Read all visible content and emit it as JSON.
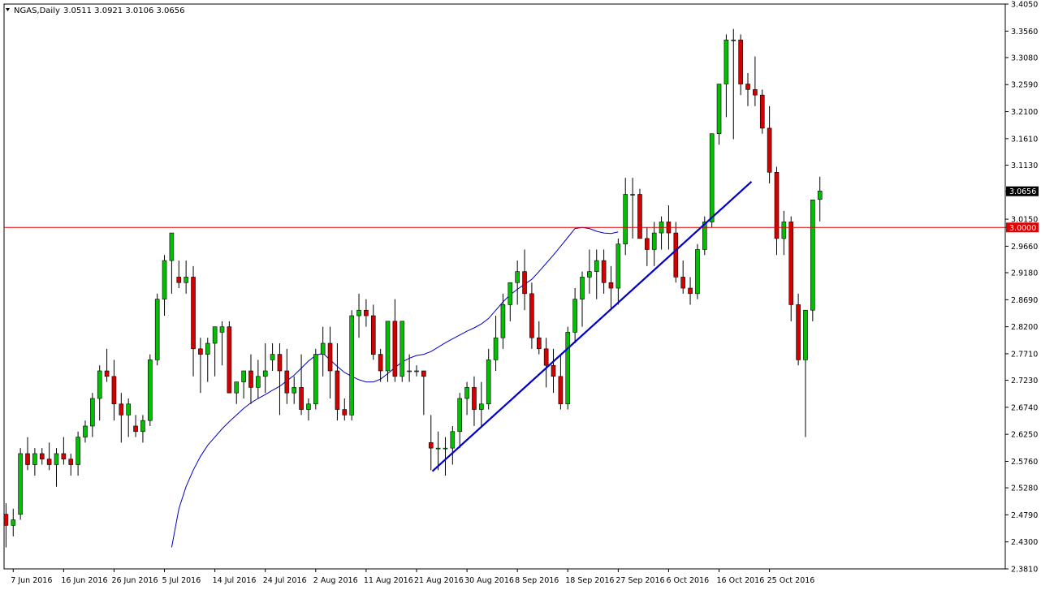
{
  "header": {
    "symbol": "NGAS,Daily",
    "ohlc": "3.0511 3.0921 3.0106 3.0656"
  },
  "colors": {
    "bull": "#00c000",
    "bear": "#d40000",
    "moving_average": "#0000c8",
    "trendline": "#0000c8",
    "hline": "#e00000",
    "price_badge_bg": "#000000",
    "price_badge_fg": "#ffffff",
    "level_badge_bg": "#e00000",
    "level_badge_fg": "#ffffff"
  },
  "chart_data": {
    "type": "candlestick",
    "symbol": "NGAS",
    "timeframe": "Daily",
    "ylim": [
      2.381,
      3.405
    ],
    "y_ticks": [
      "3.4050",
      "3.3560",
      "3.3080",
      "3.2590",
      "3.2100",
      "3.1610",
      "3.1130",
      "3.0656",
      "3.0150",
      "3.0000",
      "2.9660",
      "2.9180",
      "2.8690",
      "2.8200",
      "2.7710",
      "2.7230",
      "2.6740",
      "2.6250",
      "2.5760",
      "2.5280",
      "2.4790",
      "2.4300",
      "2.3810"
    ],
    "x_ticks": [
      {
        "label": "7 Jun 2016",
        "index": 1
      },
      {
        "label": "16 Jun 2016",
        "index": 8
      },
      {
        "label": "26 Jun 2016",
        "index": 15
      },
      {
        "label": "5 Jul 2016",
        "index": 22
      },
      {
        "label": "14 Jul 2016",
        "index": 29
      },
      {
        "label": "24 Jul 2016",
        "index": 36
      },
      {
        "label": "2 Aug 2016",
        "index": 43
      },
      {
        "label": "11 Aug 2016",
        "index": 50
      },
      {
        "label": "21 Aug 2016",
        "index": 57
      },
      {
        "label": "30 Aug 2016",
        "index": 64
      },
      {
        "label": "8 Sep 2016",
        "index": 71
      },
      {
        "label": "18 Sep 2016",
        "index": 78
      },
      {
        "label": "27 Sep 2016",
        "index": 85
      },
      {
        "label": "6 Oct 2016",
        "index": 92
      },
      {
        "label": "16 Oct 2016",
        "index": 99
      },
      {
        "label": "25 Oct 2016",
        "index": 106
      }
    ],
    "candles": [
      [
        2.48,
        2.5,
        2.42,
        2.46
      ],
      [
        2.46,
        2.49,
        2.44,
        2.47
      ],
      [
        2.48,
        2.6,
        2.47,
        2.59
      ],
      [
        2.59,
        2.62,
        2.56,
        2.57
      ],
      [
        2.57,
        2.6,
        2.55,
        2.59
      ],
      [
        2.59,
        2.6,
        2.57,
        2.58
      ],
      [
        2.58,
        2.61,
        2.56,
        2.57
      ],
      [
        2.57,
        2.6,
        2.53,
        2.59
      ],
      [
        2.59,
        2.62,
        2.57,
        2.58
      ],
      [
        2.58,
        2.59,
        2.55,
        2.57
      ],
      [
        2.57,
        2.63,
        2.55,
        2.62
      ],
      [
        2.62,
        2.65,
        2.61,
        2.64
      ],
      [
        2.64,
        2.7,
        2.62,
        2.69
      ],
      [
        2.69,
        2.75,
        2.65,
        2.74
      ],
      [
        2.74,
        2.78,
        2.72,
        2.73
      ],
      [
        2.73,
        2.76,
        2.65,
        2.68
      ],
      [
        2.68,
        2.7,
        2.61,
        2.66
      ],
      [
        2.66,
        2.69,
        2.62,
        2.68
      ],
      [
        2.64,
        2.66,
        2.62,
        2.63
      ],
      [
        2.63,
        2.66,
        2.61,
        2.65
      ],
      [
        2.65,
        2.77,
        2.64,
        2.76
      ],
      [
        2.76,
        2.88,
        2.75,
        2.87
      ],
      [
        2.87,
        2.95,
        2.84,
        2.94
      ],
      [
        2.94,
        2.99,
        2.88,
        2.99
      ],
      [
        2.91,
        2.94,
        2.89,
        2.9
      ],
      [
        2.9,
        2.94,
        2.88,
        2.91
      ],
      [
        2.91,
        2.93,
        2.73,
        2.78
      ],
      [
        2.78,
        2.8,
        2.7,
        2.77
      ],
      [
        2.77,
        2.8,
        2.72,
        2.79
      ],
      [
        2.79,
        2.82,
        2.73,
        2.82
      ],
      [
        2.81,
        2.83,
        2.75,
        2.82
      ],
      [
        2.82,
        2.83,
        2.7,
        2.7
      ],
      [
        2.7,
        2.72,
        2.68,
        2.72
      ],
      [
        2.72,
        2.74,
        2.69,
        2.74
      ],
      [
        2.74,
        2.77,
        2.68,
        2.71
      ],
      [
        2.71,
        2.76,
        2.69,
        2.73
      ],
      [
        2.73,
        2.79,
        2.7,
        2.74
      ],
      [
        2.76,
        2.79,
        2.74,
        2.77
      ],
      [
        2.77,
        2.79,
        2.66,
        2.74
      ],
      [
        2.74,
        2.78,
        2.68,
        2.7
      ],
      [
        2.7,
        2.73,
        2.68,
        2.71
      ],
      [
        2.71,
        2.77,
        2.66,
        2.67
      ],
      [
        2.67,
        2.69,
        2.65,
        2.68
      ],
      [
        2.68,
        2.78,
        2.67,
        2.77
      ],
      [
        2.77,
        2.82,
        2.73,
        2.79
      ],
      [
        2.79,
        2.82,
        2.69,
        2.74
      ],
      [
        2.74,
        2.79,
        2.65,
        2.67
      ],
      [
        2.67,
        2.69,
        2.65,
        2.66
      ],
      [
        2.66,
        2.85,
        2.65,
        2.84
      ],
      [
        2.84,
        2.88,
        2.8,
        2.85
      ],
      [
        2.85,
        2.87,
        2.82,
        2.84
      ],
      [
        2.84,
        2.86,
        2.76,
        2.77
      ],
      [
        2.77,
        2.78,
        2.72,
        2.74
      ],
      [
        2.74,
        2.83,
        2.72,
        2.83
      ],
      [
        2.83,
        2.87,
        2.72,
        2.73
      ],
      [
        2.73,
        2.83,
        2.72,
        2.83
      ],
      [
        2.74,
        2.77,
        2.72,
        2.74
      ],
      [
        2.74,
        2.75,
        2.73,
        2.74
      ],
      [
        2.74,
        2.74,
        2.66,
        2.73
      ],
      [
        2.61,
        2.66,
        2.56,
        2.6
      ],
      [
        2.6,
        2.63,
        2.56,
        2.6
      ],
      [
        2.6,
        2.62,
        2.55,
        2.6
      ],
      [
        2.6,
        2.64,
        2.57,
        2.63
      ],
      [
        2.63,
        2.7,
        2.6,
        2.69
      ],
      [
        2.69,
        2.72,
        2.66,
        2.71
      ],
      [
        2.71,
        2.73,
        2.64,
        2.67
      ],
      [
        2.67,
        2.72,
        2.64,
        2.68
      ],
      [
        2.68,
        2.78,
        2.67,
        2.76
      ],
      [
        2.76,
        2.84,
        2.74,
        2.8
      ],
      [
        2.8,
        2.88,
        2.78,
        2.86
      ],
      [
        2.86,
        2.9,
        2.83,
        2.9
      ],
      [
        2.9,
        2.94,
        2.86,
        2.92
      ],
      [
        2.92,
        2.96,
        2.85,
        2.88
      ],
      [
        2.88,
        2.9,
        2.78,
        2.8
      ],
      [
        2.8,
        2.83,
        2.77,
        2.78
      ],
      [
        2.78,
        2.8,
        2.71,
        2.75
      ],
      [
        2.75,
        2.78,
        2.7,
        2.73
      ],
      [
        2.73,
        2.77,
        2.67,
        2.68
      ],
      [
        2.68,
        2.82,
        2.67,
        2.81
      ],
      [
        2.81,
        2.89,
        2.79,
        2.87
      ],
      [
        2.87,
        2.92,
        2.82,
        2.91
      ],
      [
        2.91,
        2.96,
        2.88,
        2.92
      ],
      [
        2.92,
        2.96,
        2.87,
        2.94
      ],
      [
        2.94,
        2.96,
        2.88,
        2.9
      ],
      [
        2.9,
        2.93,
        2.85,
        2.89
      ],
      [
        2.89,
        2.98,
        2.86,
        2.97
      ],
      [
        2.97,
        3.09,
        2.95,
        3.06
      ],
      [
        3.06,
        3.09,
        2.98,
        3.06
      ],
      [
        3.06,
        3.07,
        2.98,
        2.98
      ],
      [
        2.98,
        3.0,
        2.93,
        2.96
      ],
      [
        2.96,
        3.01,
        2.93,
        2.99
      ],
      [
        2.99,
        3.02,
        2.96,
        3.01
      ],
      [
        3.01,
        3.04,
        2.96,
        2.99
      ],
      [
        2.99,
        3.01,
        2.9,
        2.91
      ],
      [
        2.91,
        2.94,
        2.88,
        2.89
      ],
      [
        2.89,
        2.91,
        2.86,
        2.88
      ],
      [
        2.88,
        2.97,
        2.87,
        2.96
      ],
      [
        2.96,
        3.02,
        2.95,
        3.01
      ],
      [
        3.01,
        3.16,
        3.0,
        3.17
      ],
      [
        3.17,
        3.26,
        3.15,
        3.26
      ],
      [
        3.26,
        3.35,
        3.2,
        3.34
      ],
      [
        3.34,
        3.36,
        3.16,
        3.34
      ],
      [
        3.34,
        3.35,
        3.24,
        3.26
      ],
      [
        3.26,
        3.28,
        3.22,
        3.25
      ],
      [
        3.25,
        3.31,
        3.22,
        3.24
      ],
      [
        3.24,
        3.25,
        3.17,
        3.18
      ],
      [
        3.18,
        3.22,
        3.08,
        3.1
      ],
      [
        3.1,
        3.11,
        2.95,
        2.98
      ],
      [
        2.98,
        3.03,
        2.95,
        3.01
      ],
      [
        3.01,
        3.02,
        2.83,
        2.86
      ],
      [
        2.86,
        2.88,
        2.75,
        2.76
      ],
      [
        2.76,
        2.84,
        2.62,
        2.85
      ],
      [
        2.85,
        3.05,
        2.83,
        3.05
      ],
      [
        3.051,
        3.092,
        3.011,
        3.066
      ]
    ],
    "moving_average": [
      [
        23,
        2.42
      ],
      [
        24,
        2.49
      ],
      [
        25,
        2.53
      ],
      [
        26,
        2.56
      ],
      [
        27,
        2.585
      ],
      [
        28,
        2.605
      ],
      [
        29,
        2.62
      ],
      [
        30,
        2.635
      ],
      [
        31,
        2.648
      ],
      [
        32,
        2.66
      ],
      [
        33,
        2.672
      ],
      [
        34,
        2.682
      ],
      [
        35,
        2.69
      ],
      [
        36,
        2.697
      ],
      [
        37,
        2.705
      ],
      [
        38,
        2.712
      ],
      [
        39,
        2.722
      ],
      [
        40,
        2.732
      ],
      [
        41,
        2.745
      ],
      [
        42,
        2.758
      ],
      [
        43,
        2.768
      ],
      [
        44,
        2.772
      ],
      [
        45,
        2.76
      ],
      [
        46,
        2.748
      ],
      [
        47,
        2.737
      ],
      [
        48,
        2.73
      ],
      [
        49,
        2.724
      ],
      [
        50,
        2.72
      ],
      [
        51,
        2.72
      ],
      [
        52,
        2.725
      ],
      [
        53,
        2.735
      ],
      [
        54,
        2.746
      ],
      [
        55,
        2.756
      ],
      [
        56,
        2.763
      ],
      [
        57,
        2.768
      ],
      [
        58,
        2.77
      ],
      [
        59,
        2.775
      ],
      [
        60,
        2.783
      ],
      [
        61,
        2.791
      ],
      [
        62,
        2.798
      ],
      [
        63,
        2.805
      ],
      [
        64,
        2.812
      ],
      [
        65,
        2.818
      ],
      [
        66,
        2.825
      ],
      [
        67,
        2.835
      ],
      [
        68,
        2.85
      ],
      [
        69,
        2.865
      ],
      [
        70,
        2.878
      ],
      [
        71,
        2.888
      ],
      [
        72,
        2.897
      ],
      [
        73,
        2.906
      ],
      [
        74,
        2.92
      ],
      [
        75,
        2.935
      ],
      [
        76,
        2.95
      ],
      [
        77,
        2.966
      ],
      [
        78,
        2.982
      ],
      [
        79,
        2.998
      ],
      [
        80,
        3.0
      ],
      [
        81,
        2.998
      ],
      [
        82,
        2.993
      ],
      [
        83,
        2.99
      ],
      [
        84,
        2.989
      ],
      [
        85,
        2.992
      ]
    ],
    "trendline": {
      "from": {
        "index": 59.2,
        "value": 2.558
      },
      "to": {
        "index": 103.5,
        "value": 3.083
      }
    },
    "horizontal_line": {
      "value": 3.0,
      "label": "3.0000"
    },
    "current_price": {
      "value": 3.0656,
      "label": "3.0656"
    }
  }
}
